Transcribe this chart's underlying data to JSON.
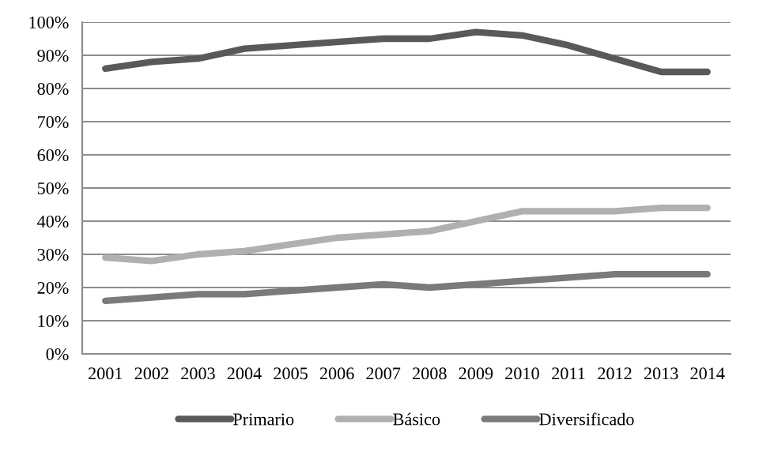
{
  "chart_data": {
    "type": "line",
    "categories": [
      "2001",
      "2002",
      "2003",
      "2004",
      "2005",
      "2006",
      "2007",
      "2008",
      "2009",
      "2010",
      "2011",
      "2012",
      "2013",
      "2014"
    ],
    "series": [
      {
        "name": "Primario",
        "color": "#595959",
        "values": [
          86,
          88,
          89,
          92,
          93,
          94,
          95,
          95,
          97,
          96,
          93,
          89,
          85,
          85
        ]
      },
      {
        "name": "Básico",
        "color": "#b0b0b0",
        "values": [
          29,
          28,
          30,
          31,
          33,
          35,
          36,
          37,
          40,
          43,
          43,
          43,
          44,
          44
        ]
      },
      {
        "name": "Diversificado",
        "color": "#7a7a7a",
        "values": [
          16,
          17,
          18,
          18,
          19,
          20,
          21,
          20,
          21,
          22,
          23,
          24,
          24,
          24
        ]
      }
    ],
    "ylim": [
      0,
      100
    ],
    "yticks": [
      {
        "value": 0,
        "label": "0%"
      },
      {
        "value": 10,
        "label": "10%"
      },
      {
        "value": 20,
        "label": "20%"
      },
      {
        "value": 30,
        "label": "30%"
      },
      {
        "value": 40,
        "label": "40%"
      },
      {
        "value": 50,
        "label": "50%"
      },
      {
        "value": 60,
        "label": "60%"
      },
      {
        "value": 70,
        "label": "70%"
      },
      {
        "value": 80,
        "label": "80%"
      },
      {
        "value": 90,
        "label": "90%"
      },
      {
        "value": 100,
        "label": "100%"
      }
    ],
    "grid": "y",
    "legend": "bottom",
    "marker": "none",
    "line_style": "solid"
  }
}
